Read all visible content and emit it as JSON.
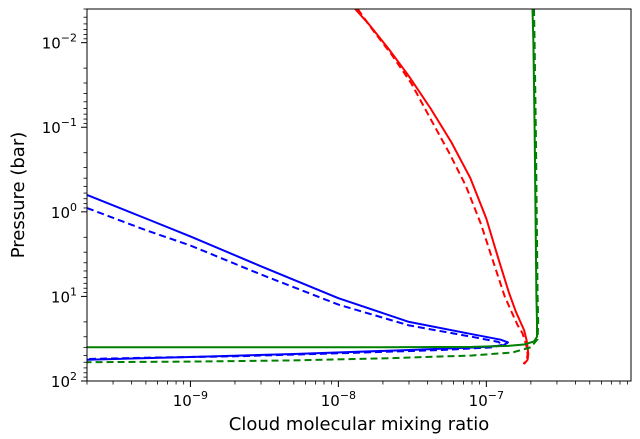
{
  "chart_data": {
    "type": "line",
    "xlabel": "Cloud molecular mixing ratio",
    "ylabel": "Pressure (bar)",
    "x_scale": "log",
    "y_scale": "log",
    "y_inverted": true,
    "xlim": [
      2e-10,
      9.5e-07
    ],
    "ylim": [
      100,
      0.004
    ],
    "grid": false,
    "x_ticks": [
      {
        "value": 1e-09,
        "base": "10",
        "exp": "−9"
      },
      {
        "value": 1e-08,
        "base": "10",
        "exp": "−8"
      },
      {
        "value": 1e-07,
        "base": "10",
        "exp": "−7"
      }
    ],
    "y_ticks": [
      {
        "value": 0.01,
        "base": "10",
        "exp": "−2"
      },
      {
        "value": 0.1,
        "base": "10",
        "exp": "−1"
      },
      {
        "value": 1,
        "base": "10",
        "exp": "0"
      },
      {
        "value": 10,
        "base": "10",
        "exp": "1"
      },
      {
        "value": 100,
        "base": "10",
        "exp": "2"
      }
    ],
    "series": [
      {
        "color": "#ff0000",
        "style": "solid",
        "points": [
          [
            1.3e-08,
            0.004
          ],
          [
            1.6e-08,
            0.006
          ],
          [
            2.2e-08,
            0.012
          ],
          [
            3e-08,
            0.025
          ],
          [
            4.2e-08,
            0.06
          ],
          [
            5.8e-08,
            0.15
          ],
          [
            7.8e-08,
            0.4
          ],
          [
            1e-07,
            1.2
          ],
          [
            1.2e-07,
            3.5
          ],
          [
            1.42e-07,
            9
          ],
          [
            1.58e-07,
            15
          ],
          [
            1.7e-07,
            20
          ],
          [
            1.8e-07,
            25
          ],
          [
            1.87e-07,
            33
          ],
          [
            1.9e-07,
            40
          ],
          [
            1.92e-07,
            48
          ],
          [
            1.9e-07,
            56
          ],
          [
            1.8e-07,
            63
          ]
        ]
      },
      {
        "color": "#ff0000",
        "style": "dashed",
        "points": [
          [
            1.35e-08,
            0.004
          ],
          [
            1.7e-08,
            0.007
          ],
          [
            2.3e-08,
            0.014
          ],
          [
            3.1e-08,
            0.03
          ],
          [
            4.2e-08,
            0.08
          ],
          [
            5.6e-08,
            0.2
          ],
          [
            7.3e-08,
            0.5
          ],
          [
            9.2e-08,
            1.4
          ],
          [
            1.12e-07,
            4
          ],
          [
            1.33e-07,
            10
          ],
          [
            1.5e-07,
            16
          ],
          [
            1.63e-07,
            22
          ],
          [
            1.75e-07,
            27
          ],
          [
            1.83e-07,
            34
          ],
          [
            1.88e-07,
            41
          ],
          [
            1.9e-07,
            48
          ],
          [
            1.88e-07,
            56
          ],
          [
            1.78e-07,
            63
          ]
        ]
      },
      {
        "color": "#0000ff",
        "style": "solid",
        "points": [
          [
            2e-10,
            0.63
          ],
          [
            5e-10,
            1.2
          ],
          [
            1e-09,
            1.95
          ],
          [
            3e-09,
            4.4
          ],
          [
            1e-08,
            10.5
          ],
          [
            3e-08,
            20
          ],
          [
            8e-08,
            28
          ],
          [
            1.25e-07,
            32.5
          ],
          [
            1.4e-07,
            35
          ],
          [
            1.3e-07,
            38
          ],
          [
            9e-08,
            40
          ],
          [
            3e-08,
            43
          ],
          [
            5e-09,
            48
          ],
          [
            1e-09,
            52
          ],
          [
            2e-10,
            56
          ]
        ]
      },
      {
        "color": "#0000ff",
        "style": "dashed",
        "points": [
          [
            2e-10,
            0.9
          ],
          [
            5e-10,
            1.65
          ],
          [
            1e-09,
            2.5
          ],
          [
            3e-09,
            5.5
          ],
          [
            1e-08,
            12.5
          ],
          [
            3e-08,
            22
          ],
          [
            8e-08,
            30
          ],
          [
            1.2e-07,
            34.5
          ],
          [
            1.3e-07,
            37
          ],
          [
            1.1e-07,
            40
          ],
          [
            5e-08,
            43
          ],
          [
            1e-08,
            47
          ],
          [
            2e-09,
            51
          ],
          [
            5e-10,
            53
          ],
          [
            2e-10,
            55
          ]
        ]
      },
      {
        "color": "#008000",
        "style": "solid",
        "points": [
          [
            2.05e-07,
            0.004
          ],
          [
            2.08e-07,
            0.01
          ],
          [
            2.12e-07,
            0.1
          ],
          [
            2.15e-07,
            1
          ],
          [
            2.18e-07,
            10
          ],
          [
            2.2e-07,
            20
          ],
          [
            2.2e-07,
            30
          ],
          [
            2.1e-07,
            34
          ],
          [
            1.8e-07,
            37
          ],
          [
            1.4e-07,
            38.5
          ],
          [
            8e-08,
            39.5
          ],
          [
            2e-08,
            40
          ],
          [
            1e-09,
            40
          ],
          [
            2e-10,
            40
          ]
        ]
      },
      {
        "color": "#008000",
        "style": "dashed",
        "points": [
          [
            2.1e-07,
            0.004
          ],
          [
            2.12e-07,
            0.01
          ],
          [
            2.16e-07,
            0.1
          ],
          [
            2.19e-07,
            1
          ],
          [
            2.22e-07,
            10
          ],
          [
            2.24e-07,
            20
          ],
          [
            2.22e-07,
            32
          ],
          [
            2e-07,
            40
          ],
          [
            1.5e-07,
            46
          ],
          [
            8e-08,
            50
          ],
          [
            2e-08,
            54
          ],
          [
            5e-09,
            57
          ],
          [
            1e-09,
            59
          ],
          [
            2e-10,
            60
          ]
        ]
      }
    ]
  }
}
